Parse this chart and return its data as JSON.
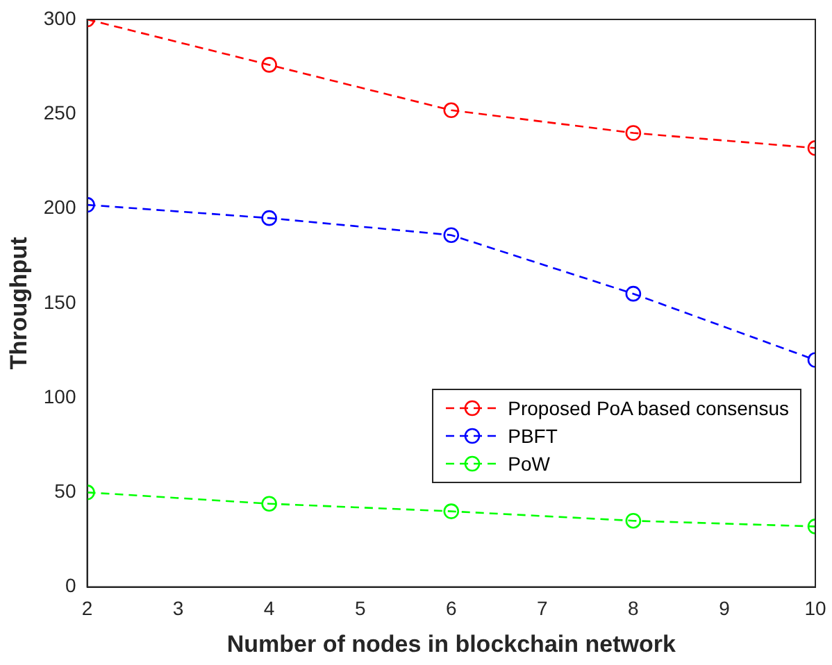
{
  "chart_data": {
    "type": "line",
    "xlabel": "Number of nodes in blockchain network",
    "ylabel": "Throughput",
    "x": [
      2,
      4,
      6,
      8,
      10
    ],
    "series": [
      {
        "name": "Proposed PoA based consensus",
        "color": "#ff0000",
        "values": [
          300,
          276,
          252,
          240,
          232
        ]
      },
      {
        "name": "PBFT",
        "color": "#0000ff",
        "values": [
          202,
          195,
          186,
          155,
          120
        ]
      },
      {
        "name": "PoW",
        "color": "#00ff00",
        "values": [
          50,
          44,
          40,
          35,
          32
        ]
      }
    ],
    "xlim": [
      2,
      10
    ],
    "xticks": [
      2,
      3,
      4,
      5,
      6,
      7,
      8,
      9,
      10
    ],
    "ylim": [
      0,
      300
    ],
    "yticks": [
      0,
      50,
      100,
      150,
      200,
      250,
      300
    ],
    "grid": false,
    "legend": "right",
    "marker": "circle",
    "line_style": "dashed"
  }
}
